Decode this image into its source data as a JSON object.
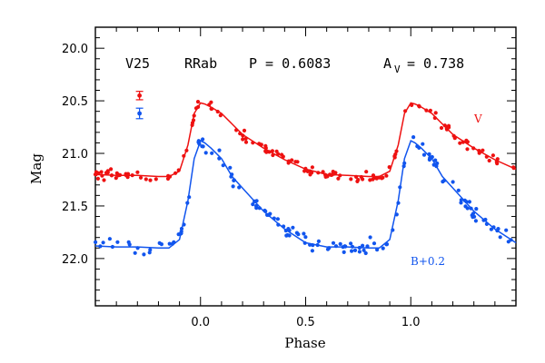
{
  "chart_data": {
    "type": "scatter",
    "title": "",
    "header": {
      "star": "V25",
      "type": "RRab",
      "period_text": "P = 0.6083",
      "amp_label": "A",
      "amp_sub": "V",
      "amp_value": "= 0.738"
    },
    "xlabel": "Phase",
    "ylabel": "Mag",
    "xlim": [
      -0.5,
      1.5
    ],
    "ylim": [
      22.45,
      19.8
    ],
    "y_inverted": true,
    "xticks": [
      "0.0",
      "0.5",
      "1.0"
    ],
    "yticks": [
      "20.0",
      "20.5",
      "21.0",
      "21.5",
      "22.0"
    ],
    "xtick_values": [
      0.0,
      0.5,
      1.0
    ],
    "ytick_values": [
      20.0,
      20.5,
      21.0,
      21.5,
      22.0
    ],
    "grid": false,
    "series": [
      {
        "name": "V",
        "color": "#ee1111",
        "errorbar": {
          "x": -0.29,
          "y": 20.45,
          "err": 0.04
        },
        "model": {
          "x": [
            -0.5,
            -0.4,
            -0.3,
            -0.2,
            -0.15,
            -0.1,
            -0.06,
            -0.03,
            0.0,
            0.02,
            0.05,
            0.1,
            0.15,
            0.2,
            0.3,
            0.4,
            0.5,
            0.6,
            0.7,
            0.8,
            0.85,
            0.9,
            0.94,
            0.97,
            1.0,
            1.02,
            1.05,
            1.1,
            1.15,
            1.2,
            1.3,
            1.4,
            1.5
          ],
          "y": [
            21.2,
            21.21,
            21.21,
            21.22,
            21.22,
            21.17,
            20.92,
            20.62,
            20.52,
            20.53,
            20.56,
            20.62,
            20.72,
            20.82,
            20.95,
            21.06,
            21.15,
            21.2,
            21.21,
            21.22,
            21.22,
            21.17,
            20.92,
            20.62,
            20.52,
            20.53,
            20.56,
            20.62,
            20.72,
            20.82,
            20.95,
            21.06,
            21.15
          ]
        }
      },
      {
        "name": "B+0.2",
        "color": "#1155ee",
        "errorbar": {
          "x": -0.29,
          "y": 20.62,
          "err": 0.05
        },
        "model": {
          "x": [
            -0.5,
            -0.4,
            -0.3,
            -0.2,
            -0.15,
            -0.1,
            -0.06,
            -0.03,
            0.0,
            0.02,
            0.05,
            0.1,
            0.15,
            0.2,
            0.3,
            0.4,
            0.5,
            0.6,
            0.7,
            0.8,
            0.85,
            0.9,
            0.94,
            0.97,
            1.0,
            1.02,
            1.05,
            1.1,
            1.15,
            1.2,
            1.3,
            1.4,
            1.5
          ],
          "y": [
            21.88,
            21.89,
            21.89,
            21.9,
            21.9,
            21.82,
            21.45,
            21.05,
            20.88,
            20.9,
            20.95,
            21.05,
            21.22,
            21.33,
            21.55,
            21.72,
            21.85,
            21.89,
            21.89,
            21.9,
            21.9,
            21.82,
            21.45,
            21.05,
            20.88,
            20.9,
            20.95,
            21.05,
            21.22,
            21.33,
            21.55,
            21.72,
            21.85
          ]
        }
      }
    ]
  }
}
